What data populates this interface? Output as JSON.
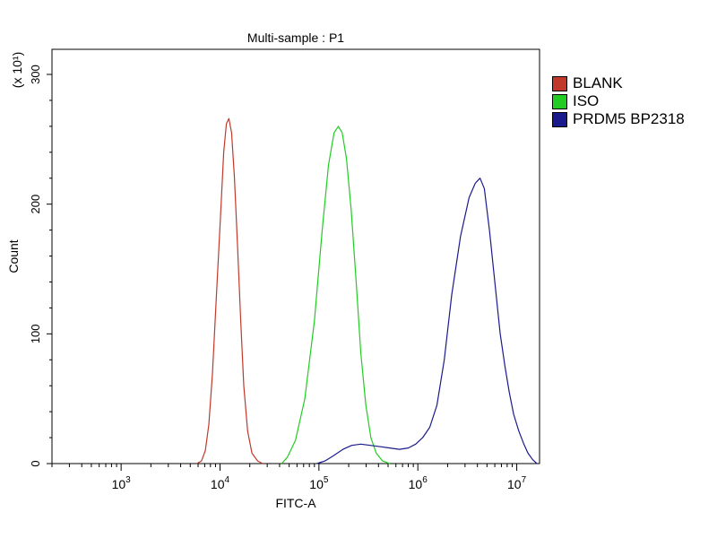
{
  "chart_data": {
    "type": "line",
    "title": "Multi-sample : P1",
    "xlabel": "FITC-A",
    "ylabel": "Count",
    "y_multiplier_label": "(x 10¹)",
    "x_scale": "log",
    "xlim": [
      200,
      17000000
    ],
    "ylim": [
      0,
      320
    ],
    "x_tick_labels": [
      {
        "value": 1000,
        "base": "10",
        "exp": "3"
      },
      {
        "value": 10000,
        "base": "10",
        "exp": "4"
      },
      {
        "value": 100000,
        "base": "10",
        "exp": "5"
      },
      {
        "value": 1000000,
        "base": "10",
        "exp": "6"
      },
      {
        "value": 10000000,
        "base": "10",
        "exp": "7"
      }
    ],
    "y_ticks": [
      0,
      100,
      200,
      300
    ],
    "grid": false,
    "legend_position": "right",
    "series": [
      {
        "name": "BLANK",
        "color": "#c0392b",
        "points": [
          [
            5800,
            0
          ],
          [
            6500,
            2
          ],
          [
            7100,
            10
          ],
          [
            7700,
            30
          ],
          [
            8400,
            70
          ],
          [
            9200,
            130
          ],
          [
            10100,
            190
          ],
          [
            10900,
            240
          ],
          [
            11600,
            262
          ],
          [
            12300,
            266
          ],
          [
            13100,
            255
          ],
          [
            14000,
            220
          ],
          [
            15000,
            170
          ],
          [
            16200,
            110
          ],
          [
            17400,
            60
          ],
          [
            19000,
            25
          ],
          [
            21000,
            8
          ],
          [
            24000,
            2
          ],
          [
            27000,
            0
          ]
        ]
      },
      {
        "name": "ISO",
        "color": "#22cc22",
        "points": [
          [
            42000,
            0
          ],
          [
            48000,
            5
          ],
          [
            58000,
            18
          ],
          [
            72000,
            50
          ],
          [
            90000,
            110
          ],
          [
            108000,
            180
          ],
          [
            125000,
            230
          ],
          [
            142000,
            255
          ],
          [
            157000,
            260
          ],
          [
            172000,
            255
          ],
          [
            190000,
            235
          ],
          [
            212000,
            195
          ],
          [
            238000,
            140
          ],
          [
            265000,
            85
          ],
          [
            298000,
            45
          ],
          [
            335000,
            20
          ],
          [
            380000,
            8
          ],
          [
            440000,
            2
          ],
          [
            520000,
            0
          ]
        ]
      },
      {
        "name": "PRDM5 BP2318",
        "color": "#1a1a8c",
        "points": [
          [
            95000,
            0
          ],
          [
            115000,
            2
          ],
          [
            140000,
            6
          ],
          [
            175000,
            11
          ],
          [
            215000,
            14
          ],
          [
            265000,
            15
          ],
          [
            330000,
            14
          ],
          [
            420000,
            13
          ],
          [
            520000,
            12
          ],
          [
            650000,
            11
          ],
          [
            800000,
            12
          ],
          [
            950000,
            15
          ],
          [
            1120000,
            20
          ],
          [
            1320000,
            28
          ],
          [
            1560000,
            45
          ],
          [
            1850000,
            80
          ],
          [
            2200000,
            130
          ],
          [
            2700000,
            175
          ],
          [
            3300000,
            205
          ],
          [
            3800000,
            216
          ],
          [
            4250000,
            220
          ],
          [
            4700000,
            212
          ],
          [
            5300000,
            180
          ],
          [
            6000000,
            140
          ],
          [
            6800000,
            100
          ],
          [
            7600000,
            75
          ],
          [
            8400000,
            55
          ],
          [
            9300000,
            38
          ],
          [
            10500000,
            25
          ],
          [
            11800000,
            15
          ],
          [
            13000000,
            8
          ],
          [
            14500000,
            3
          ],
          [
            16000000,
            0
          ]
        ]
      }
    ]
  }
}
